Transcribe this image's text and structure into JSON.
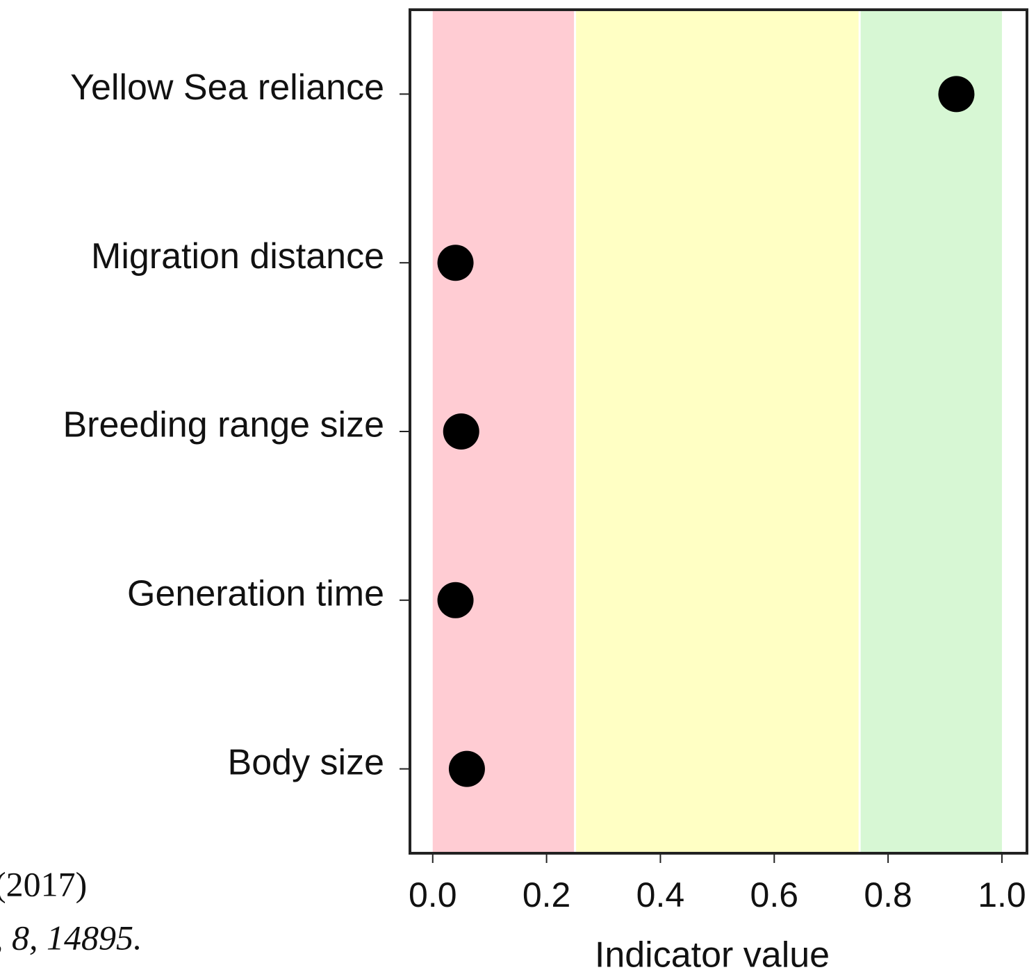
{
  "chart_data": {
    "type": "dot",
    "categories": [
      "Yellow Sea reliance",
      "Migration distance",
      "Breeding range size",
      "Generation time",
      "Body size"
    ],
    "values": [
      0.92,
      0.04,
      0.05,
      0.04,
      0.06
    ],
    "color": "#000000",
    "xlabel": "Indicator value",
    "xlim": [
      -0.04,
      1.044
    ],
    "xticks": [
      {
        "value": 0,
        "label": "0.0"
      },
      {
        "value": 0.2,
        "label": "0.2"
      },
      {
        "value": 0.4,
        "label": "0.4"
      },
      {
        "value": 0.6,
        "label": "0.6"
      },
      {
        "value": 0.8,
        "label": "0.8"
      },
      {
        "value": 1,
        "label": "1.0"
      }
    ],
    "bands": [
      {
        "from": 0,
        "to": 0.25,
        "color": "#ffccd3"
      },
      {
        "from": 0.25,
        "to": 0.75,
        "color": "#ffffc4"
      },
      {
        "from": 0.75,
        "to": 1,
        "color": "#d7f7d4"
      }
    ],
    "annotations": [
      "(2017)",
      ", 8, 14895."
    ]
  }
}
